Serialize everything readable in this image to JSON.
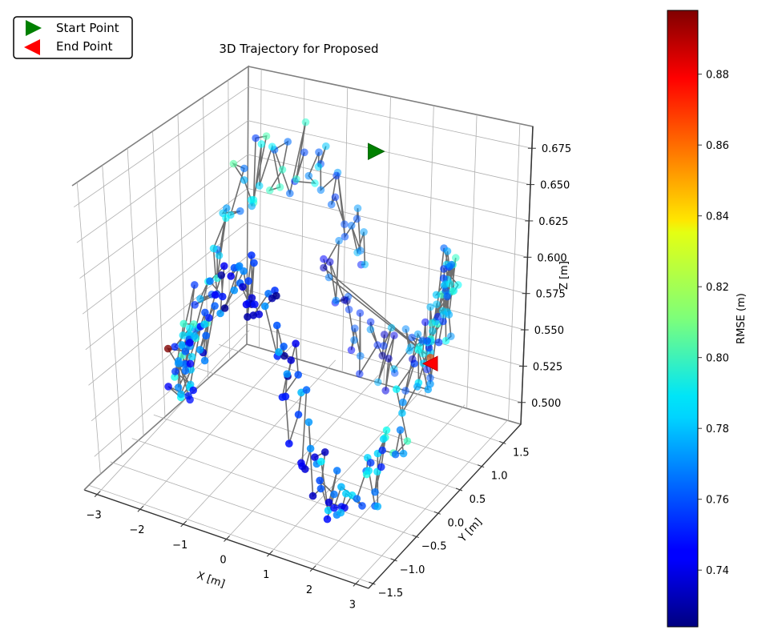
{
  "chart_data": {
    "type": "scatter3d",
    "title": "3D Trajectory for Proposed",
    "xlabel": "X [m]",
    "ylabel": "Y [m]",
    "zlabel": "Z [m]",
    "xlim": [
      -3.3,
      3.3
    ],
    "ylim": [
      -1.6,
      1.9
    ],
    "zlim": [
      0.485,
      0.69
    ],
    "xticks": [
      -3,
      -2,
      -1,
      0,
      1,
      2,
      3
    ],
    "xtick_labels": [
      "−3",
      "−2",
      "−1",
      "0",
      "1",
      "2",
      "3"
    ],
    "yticks": [
      -1.5,
      -1.0,
      -0.5,
      0.0,
      0.5,
      1.0,
      1.5
    ],
    "ytick_labels": [
      "−1.5",
      "−1.0",
      "−0.5",
      "0.0",
      "0.5",
      "1.0",
      "1.5"
    ],
    "zticks": [
      0.5,
      0.525,
      0.55,
      0.575,
      0.6,
      0.625,
      0.65,
      0.675
    ],
    "ztick_labels": [
      "0.500",
      "0.525",
      "0.550",
      "0.575",
      "0.600",
      "0.625",
      "0.650",
      "0.675"
    ],
    "colorbar": {
      "label": "RMSE (m)",
      "colormap": "jet",
      "range": [
        0.724,
        0.898
      ],
      "ticks": [
        0.74,
        0.76,
        0.78,
        0.8,
        0.82,
        0.84,
        0.86,
        0.88
      ],
      "tick_labels": [
        "0.74",
        "0.76",
        "0.78",
        "0.80",
        "0.82",
        "0.84",
        "0.86",
        "0.88"
      ]
    },
    "legend": {
      "position": "top-left",
      "entries": [
        {
          "label": "Start Point",
          "marker": "triangle-right",
          "color": "#008000"
        },
        {
          "label": "End Point",
          "marker": "triangle-left",
          "color": "#ff0000"
        }
      ]
    },
    "trajectory": {
      "description": "Spiral-like path of approximately 300 points around an elliptical orbit; z oscillates between about 0.49 and 0.68 m; RMSE per point mostly between 0.73 and 0.81 m with a few outliers near 0.86-0.90 m.",
      "point_count": 300,
      "center_x": 0.1,
      "center_y": 0.2,
      "radius_x": 2.9,
      "radius_y": 1.55,
      "z_base": 0.565,
      "z_amplitude": 0.06,
      "rmse_mean": 0.765,
      "rmse_spread": 0.025,
      "start": {
        "x": 0.15,
        "y": 1.45,
        "z": 0.655
      },
      "end": {
        "x": 2.6,
        "y": 0.4,
        "z": 0.568
      },
      "outliers": [
        {
          "x": -2.7,
          "y": -0.35,
          "z": 0.548,
          "rmse": 0.898
        },
        {
          "x": 2.55,
          "y": 0.45,
          "z": 0.57,
          "rmse": 0.865
        }
      ]
    }
  }
}
